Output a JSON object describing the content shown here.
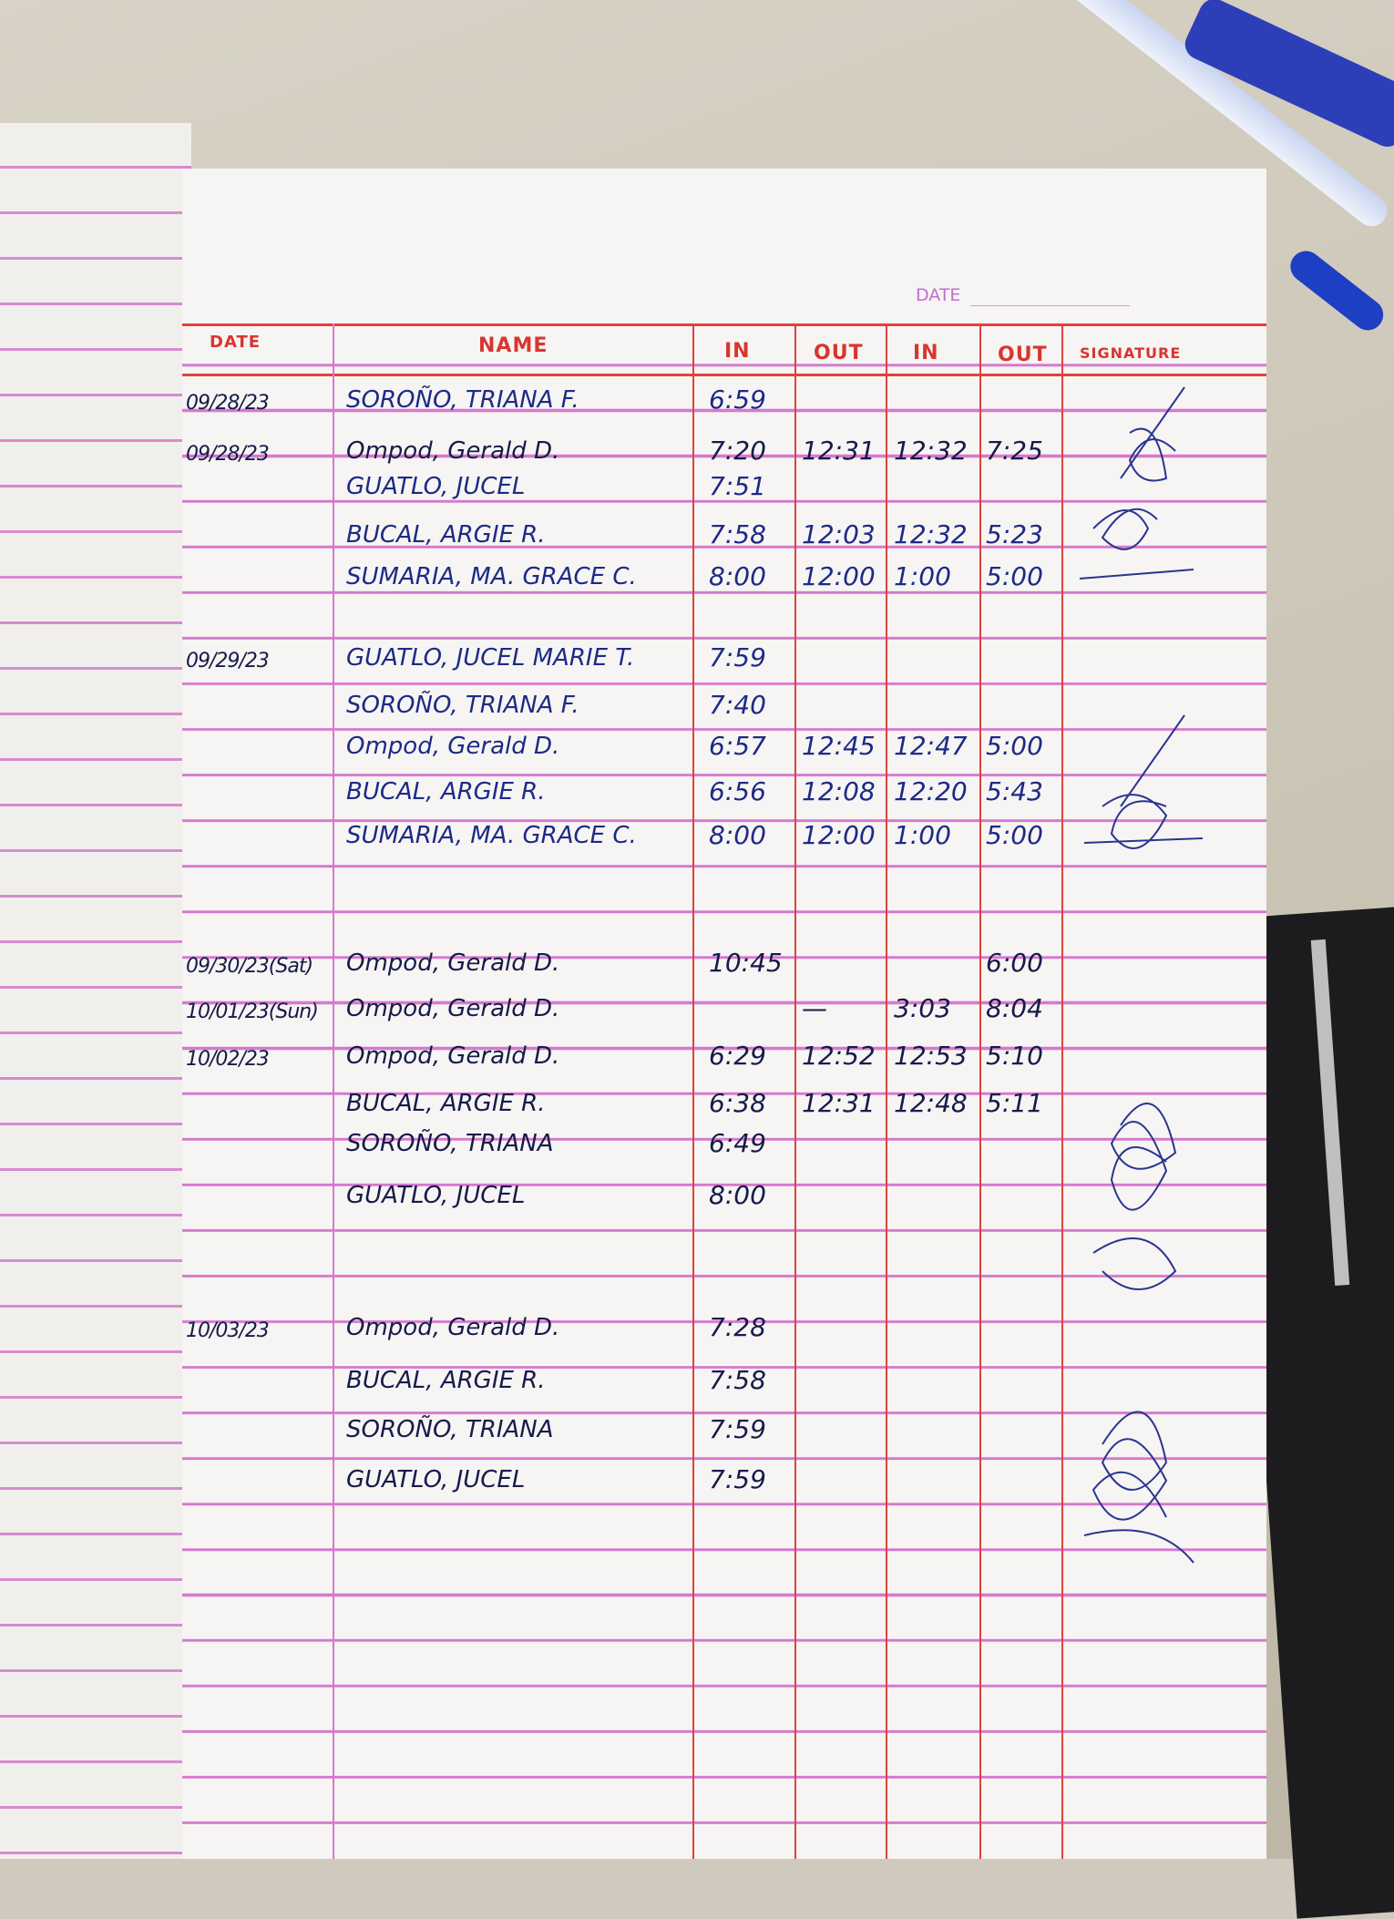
{
  "header": {
    "page_date_label": "DATE",
    "columns": [
      "DATE",
      "NAME",
      "IN",
      "OUT",
      "IN",
      "OUT",
      "SIGNATURE"
    ]
  },
  "entries": [
    {
      "date": "09/28/23",
      "name": "SOROÑO, TRIANA F.",
      "in1": "6:59",
      "out1": "",
      "in2": "",
      "out2": ""
    },
    {
      "date": "09/28/23",
      "name": "Ompod, Gerald D.",
      "in1": "7:20",
      "out1": "12:31",
      "in2": "12:32",
      "out2": "7:25"
    },
    {
      "date": "",
      "name": "GUATLO, JUCEL",
      "in1": "7:51",
      "out1": "",
      "in2": "",
      "out2": ""
    },
    {
      "date": "",
      "name": "BUCAL, ARGIE R.",
      "in1": "7:58",
      "out1": "12:03",
      "in2": "12:32",
      "out2": "5:23"
    },
    {
      "date": "",
      "name": "SUMARIA, MA. GRACE C.",
      "in1": "8:00",
      "out1": "12:00",
      "in2": "1:00",
      "out2": "5:00"
    },
    {
      "date": "09/29/23",
      "name": "GUATLO, JUCEL MARIE T.",
      "in1": "7:59",
      "out1": "",
      "in2": "",
      "out2": ""
    },
    {
      "date": "",
      "name": "SOROÑO, TRIANA F.",
      "in1": "7:40",
      "out1": "",
      "in2": "",
      "out2": ""
    },
    {
      "date": "",
      "name": "Ompod, Gerald D.",
      "in1": "6:57",
      "out1": "12:45",
      "in2": "12:47",
      "out2": "5:00"
    },
    {
      "date": "",
      "name": "BUCAL, ARGIE R.",
      "in1": "6:56",
      "out1": "12:08",
      "in2": "12:20",
      "out2": "5:43"
    },
    {
      "date": "",
      "name": "SUMARIA, MA. GRACE C.",
      "in1": "8:00",
      "out1": "12:00",
      "in2": "1:00",
      "out2": "5:00"
    },
    {
      "date": "09/30/23(Sat)",
      "name": "Ompod, Gerald D.",
      "in1": "10:45",
      "out1": "",
      "in2": "",
      "out2": "6:00"
    },
    {
      "date": "10/01/23(Sun)",
      "name": "Ompod, Gerald D.",
      "in1": "",
      "out1": "—",
      "in2": "3:03",
      "out2": "8:04"
    },
    {
      "date": "10/02/23",
      "name": "Ompod, Gerald D.",
      "in1": "6:29",
      "out1": "12:52",
      "in2": "12:53",
      "out2": "5:10"
    },
    {
      "date": "",
      "name": "BUCAL, ARGIE R.",
      "in1": "6:38",
      "out1": "12:31",
      "in2": "12:48",
      "out2": "5:11"
    },
    {
      "date": "",
      "name": "SOROÑO, TRIANA",
      "in1": "6:49",
      "out1": "",
      "in2": "",
      "out2": ""
    },
    {
      "date": "",
      "name": "GUATLO, JUCEL",
      "in1": "8:00",
      "out1": "",
      "in2": "",
      "out2": ""
    },
    {
      "date": "10/03/23",
      "name": "Ompod, Gerald D.",
      "in1": "7:28",
      "out1": "",
      "in2": "",
      "out2": ""
    },
    {
      "date": "",
      "name": "BUCAL, ARGIE R.",
      "in1": "7:58",
      "out1": "",
      "in2": "",
      "out2": ""
    },
    {
      "date": "",
      "name": "SOROÑO, TRIANA",
      "in1": "7:59",
      "out1": "",
      "in2": "",
      "out2": ""
    },
    {
      "date": "",
      "name": "GUATLO, JUCEL",
      "in1": "7:59",
      "out1": "",
      "in2": "",
      "out2": ""
    }
  ],
  "colors": {
    "rule_red": "#e0413f",
    "line_pink": "#d778cf",
    "ink_blue": "#1d2a86",
    "paper": "#f6f5f3"
  }
}
